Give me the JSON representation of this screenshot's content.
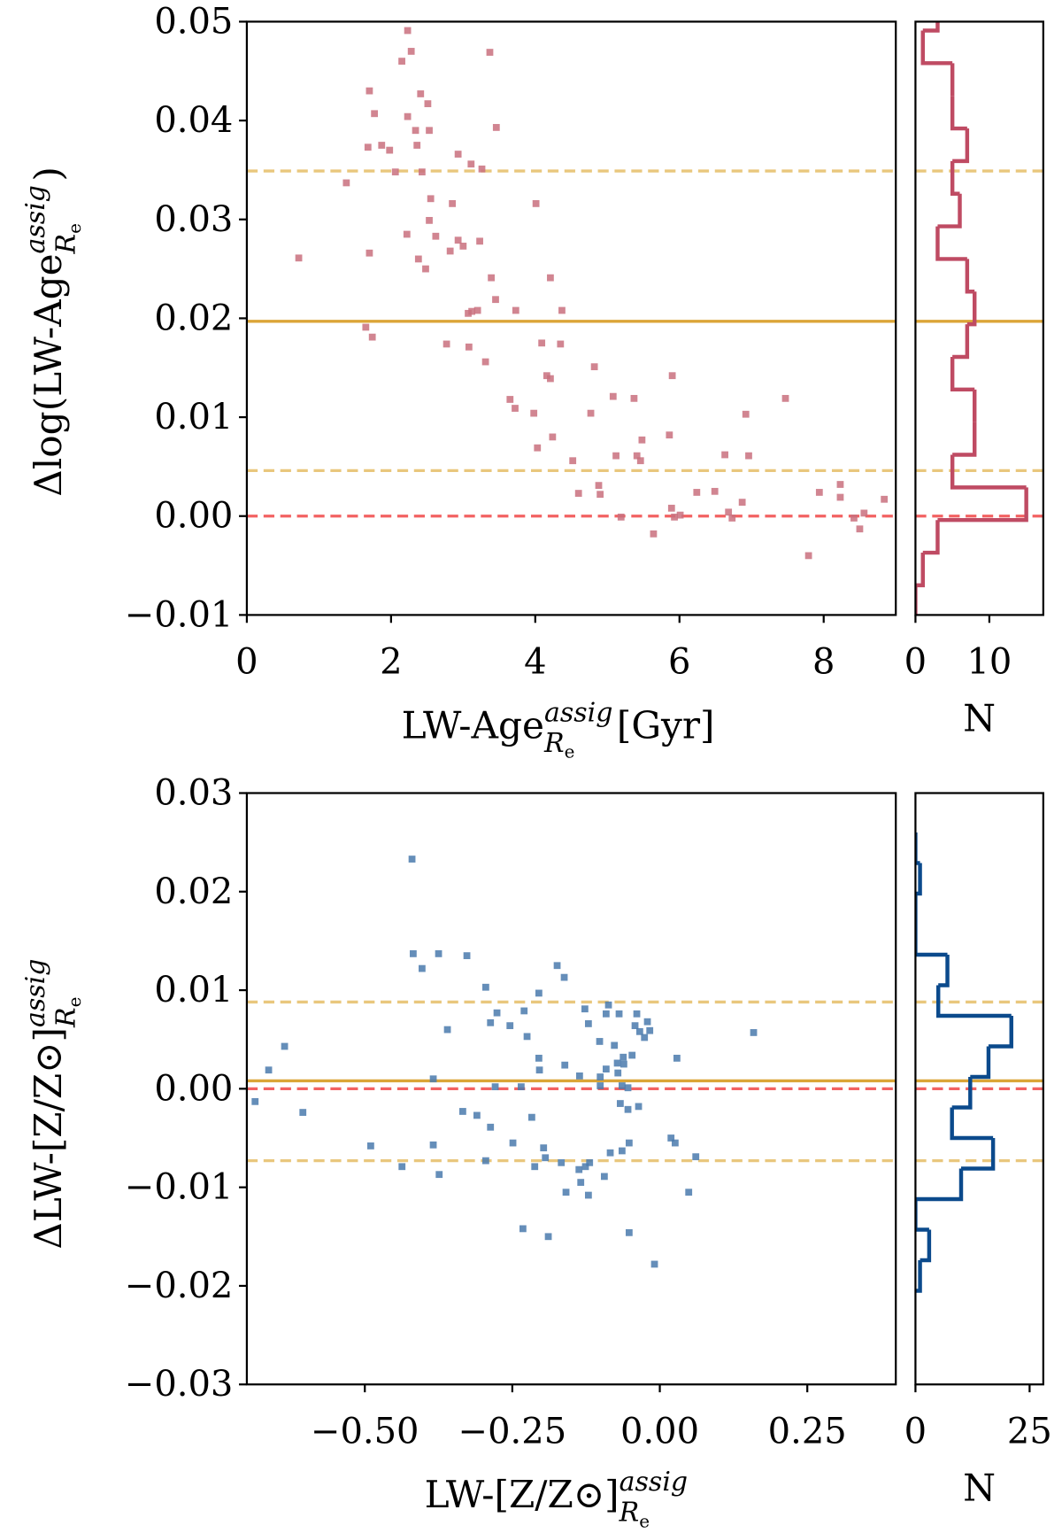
{
  "chart_data": [
    {
      "type": "scatter",
      "color": "#c9707e",
      "xlabel": {
        "text": "LW-Age",
        "sup": "assig",
        "sub": "R",
        "subsub": "e",
        "tail": "[Gyr]"
      },
      "ylabel": {
        "text": "Δlog(LW-Age",
        "sup": "assig",
        "sub": "R",
        "subsub": "e",
        "tail": ")"
      },
      "xlim": [
        0,
        9
      ],
      "ylim": [
        -0.01,
        0.05
      ],
      "xticks": [
        0,
        2,
        4,
        6,
        8
      ],
      "yticks": [
        {
          "value": -0.01,
          "label": "−0.01"
        },
        {
          "value": 0,
          "label": "0.00"
        },
        0.01,
        0.02,
        0.03,
        0.04,
        0.05
      ],
      "hlines": [
        {
          "value": 0.0349,
          "style": "dashed",
          "color": "#e9c77d"
        },
        {
          "value": 0.0197,
          "style": "solid",
          "color": "#dba537"
        },
        {
          "value": 0.0046,
          "style": "dashed",
          "color": "#e9c77d"
        },
        {
          "value": 0,
          "style": "dashed",
          "color": "#f26262"
        }
      ],
      "x": [
        2.23,
        2.28,
        2.15,
        3.37,
        1.7,
        2.41,
        1.77,
        2.51,
        2.23,
        3.46,
        2.34,
        2.53,
        1.68,
        1.87,
        1.98,
        2.36,
        2.93,
        3.11,
        3.26,
        2.06,
        2.43,
        1.38,
        2.55,
        2.85,
        4.01,
        2.53,
        0.72,
        1.7,
        2.22,
        2.62,
        2.93,
        3.0,
        2.82,
        3.23,
        2.38,
        2.48,
        3.39,
        4.21,
        3.45,
        3.07,
        3.12,
        3.2,
        3.73,
        4.37,
        1.65,
        1.74,
        2.77,
        3.08,
        3.31,
        4.09,
        4.35,
        4.16,
        4.21,
        4.82,
        5.9,
        3.65,
        3.72,
        3.98,
        5.08,
        5.37,
        4.77,
        4.24,
        5.48,
        5.86,
        6.92,
        7.47,
        4.03,
        4.52,
        5.12,
        5.41,
        5.46,
        6.63,
        6.96,
        4.6,
        4.88,
        4.9,
        5.19,
        5.89,
        6.01,
        6.24,
        6.49,
        6.68,
        6.73,
        6.87,
        5.93,
        5.64,
        7.94,
        8.23,
        8.23,
        8.84,
        8.42,
        8.5,
        8.56,
        7.79
      ],
      "values": [
        0.0491,
        0.047,
        0.046,
        0.0469,
        0.043,
        0.0427,
        0.0407,
        0.0417,
        0.0404,
        0.0393,
        0.039,
        0.039,
        0.0373,
        0.0375,
        0.037,
        0.0375,
        0.0366,
        0.0356,
        0.0351,
        0.0348,
        0.0348,
        0.0337,
        0.0321,
        0.0316,
        0.0316,
        0.0299,
        0.0261,
        0.0266,
        0.0285,
        0.0283,
        0.0279,
        0.0273,
        0.0268,
        0.0278,
        0.026,
        0.025,
        0.0241,
        0.0241,
        0.0219,
        0.0205,
        0.0207,
        0.0208,
        0.0208,
        0.0208,
        0.0191,
        0.0181,
        0.0174,
        0.0171,
        0.0156,
        0.0175,
        0.0174,
        0.0142,
        0.0139,
        0.0151,
        0.0142,
        0.0118,
        0.0109,
        0.0104,
        0.0121,
        0.0119,
        0.0104,
        0.008,
        0.0077,
        0.0082,
        0.0103,
        0.0119,
        0.0069,
        0.0056,
        0.0061,
        0.0061,
        0.0056,
        0.0062,
        0.0061,
        0.0023,
        0.0031,
        0.0022,
        -0.0001,
        0.0008,
        0.0001,
        0.0024,
        0.0025,
        0.0004,
        -0.0002,
        0.0014,
        -0.0001,
        -0.0018,
        0.0024,
        0.0032,
        0.0019,
        0.0017,
        -0.0002,
        -0.0013,
        0.0003,
        -0.004
      ]
    },
    {
      "type": "histogram",
      "orientation": "horizontal",
      "color": "#bf4b63",
      "xlabel": "N",
      "xlim": [
        0,
        17.3
      ],
      "xticks": [
        0,
        10
      ],
      "bins": [
        -0.0103,
        -0.007,
        -0.0037,
        -0.0004,
        0.0029,
        0.0062,
        0.0095,
        0.0128,
        0.0161,
        0.0194,
        0.0227,
        0.026,
        0.0293,
        0.0326,
        0.0359,
        0.0392,
        0.0425,
        0.0458,
        0.0491,
        0.0524
      ],
      "counts": [
        0,
        1,
        3,
        15,
        5,
        8,
        8,
        5,
        7,
        8,
        7,
        3,
        6,
        5,
        7,
        5,
        5,
        1,
        3
      ]
    },
    {
      "type": "scatter",
      "color": "#4a7aad",
      "xlabel": {
        "text": "LW-[Z/Z⊙]",
        "sup": "assig",
        "sub": "R",
        "subsub": "e",
        "tail": ""
      },
      "ylabel": {
        "text": "ΔLW-[Z/Z⊙]",
        "sup": "assig",
        "sub": "R",
        "subsub": "e",
        "tail": ""
      },
      "xlim": [
        -0.7,
        0.4
      ],
      "ylim": [
        -0.03,
        0.03
      ],
      "xticks": [
        {
          "value": -0.5,
          "label": "−0.50"
        },
        {
          "value": -0.25,
          "label": "−0.25"
        },
        {
          "value": 0,
          "label": "0.00"
        },
        0.25
      ],
      "yticks": [
        {
          "value": -0.03,
          "label": "−0.03"
        },
        {
          "value": -0.02,
          "label": "−0.02"
        },
        {
          "value": -0.01,
          "label": "−0.01"
        },
        {
          "value": 0,
          "label": "0.00"
        },
        0.01,
        0.02,
        0.03
      ],
      "hlines": [
        {
          "value": 0.0088,
          "style": "dashed",
          "color": "#e9c77d"
        },
        {
          "value": 0.0008,
          "style": "solid",
          "color": "#dba537"
        },
        {
          "value": -0.0073,
          "style": "dashed",
          "color": "#e9c77d"
        },
        {
          "value": 0,
          "style": "dashed",
          "color": "#f26262"
        }
      ],
      "x": [
        -0.42,
        -0.418,
        -0.375,
        -0.403,
        -0.327,
        -0.174,
        -0.162,
        -0.205,
        -0.295,
        -0.36,
        -0.287,
        -0.276,
        -0.23,
        -0.225,
        -0.254,
        -0.127,
        -0.087,
        -0.091,
        -0.069,
        -0.039,
        -0.042,
        -0.034,
        -0.021,
        -0.026,
        -0.121,
        -0.102,
        -0.077,
        -0.062,
        -0.047,
        -0.061,
        -0.091,
        -0.101,
        -0.071,
        -0.072,
        -0.205,
        -0.161,
        -0.204,
        -0.017,
        0.029,
        0.159,
        -0.636,
        -0.663,
        -0.686,
        -0.605,
        -0.49,
        -0.384,
        -0.279,
        -0.235,
        -0.054,
        -0.064,
        -0.136,
        -0.101,
        -0.287,
        -0.217,
        -0.249,
        -0.334,
        -0.31,
        -0.384,
        -0.295,
        -0.197,
        -0.194,
        -0.212,
        -0.167,
        -0.137,
        -0.126,
        -0.119,
        -0.094,
        -0.084,
        -0.064,
        -0.052,
        0.019,
        0.026,
        0.061,
        -0.437,
        -0.374,
        -0.159,
        -0.134,
        -0.121,
        0.049,
        -0.232,
        -0.189,
        -0.052,
        -0.009,
        -0.067,
        -0.054,
        -0.036
      ],
      "values": [
        0.0233,
        0.0137,
        0.0137,
        0.0122,
        0.0135,
        0.0125,
        0.0113,
        0.0097,
        0.0103,
        0.006,
        0.0067,
        0.0077,
        0.0079,
        0.0053,
        0.0064,
        0.0081,
        0.0085,
        0.0076,
        0.0076,
        0.0076,
        0.0064,
        0.0058,
        0.0068,
        0.0052,
        0.0066,
        0.0048,
        0.0044,
        0.0032,
        0.0034,
        0.0025,
        0.002,
        0.0012,
        0.0016,
        0.0026,
        0.0031,
        0.0024,
        0.0019,
        0.0059,
        0.0031,
        0.0057,
        0.0043,
        0.0019,
        -0.0013,
        -0.0024,
        -0.0058,
        0.001,
        0.0002,
        0.0002,
        0.0001,
        0.0003,
        0.0013,
        0.0003,
        -0.0039,
        -0.0029,
        -0.0055,
        -0.0023,
        -0.0027,
        -0.0057,
        -0.0073,
        -0.006,
        -0.007,
        -0.0079,
        -0.0075,
        -0.0082,
        -0.0079,
        -0.0075,
        -0.0089,
        -0.0065,
        -0.0063,
        -0.0055,
        -0.005,
        -0.0055,
        -0.0069,
        -0.0079,
        -0.0087,
        -0.0105,
        -0.0095,
        -0.0108,
        -0.0105,
        -0.0142,
        -0.015,
        -0.0146,
        -0.0178,
        -0.0015,
        -0.0021,
        -0.0018
      ]
    },
    {
      "type": "histogram",
      "orientation": "horizontal",
      "color": "#0b4a8c",
      "xlabel": "N",
      "xlim": [
        0,
        28
      ],
      "xticks": [
        0,
        25
      ],
      "bins": [
        -0.0205,
        -0.0174,
        -0.0143,
        -0.0112,
        -0.0081,
        -0.005,
        -0.0019,
        0.0012,
        0.0043,
        0.0074,
        0.0105,
        0.0136,
        0.0167,
        0.0198,
        0.0229,
        0.026
      ],
      "counts": [
        1,
        3,
        0,
        10,
        17,
        8,
        12,
        16,
        21,
        5,
        7,
        0,
        0,
        1,
        0
      ]
    }
  ]
}
